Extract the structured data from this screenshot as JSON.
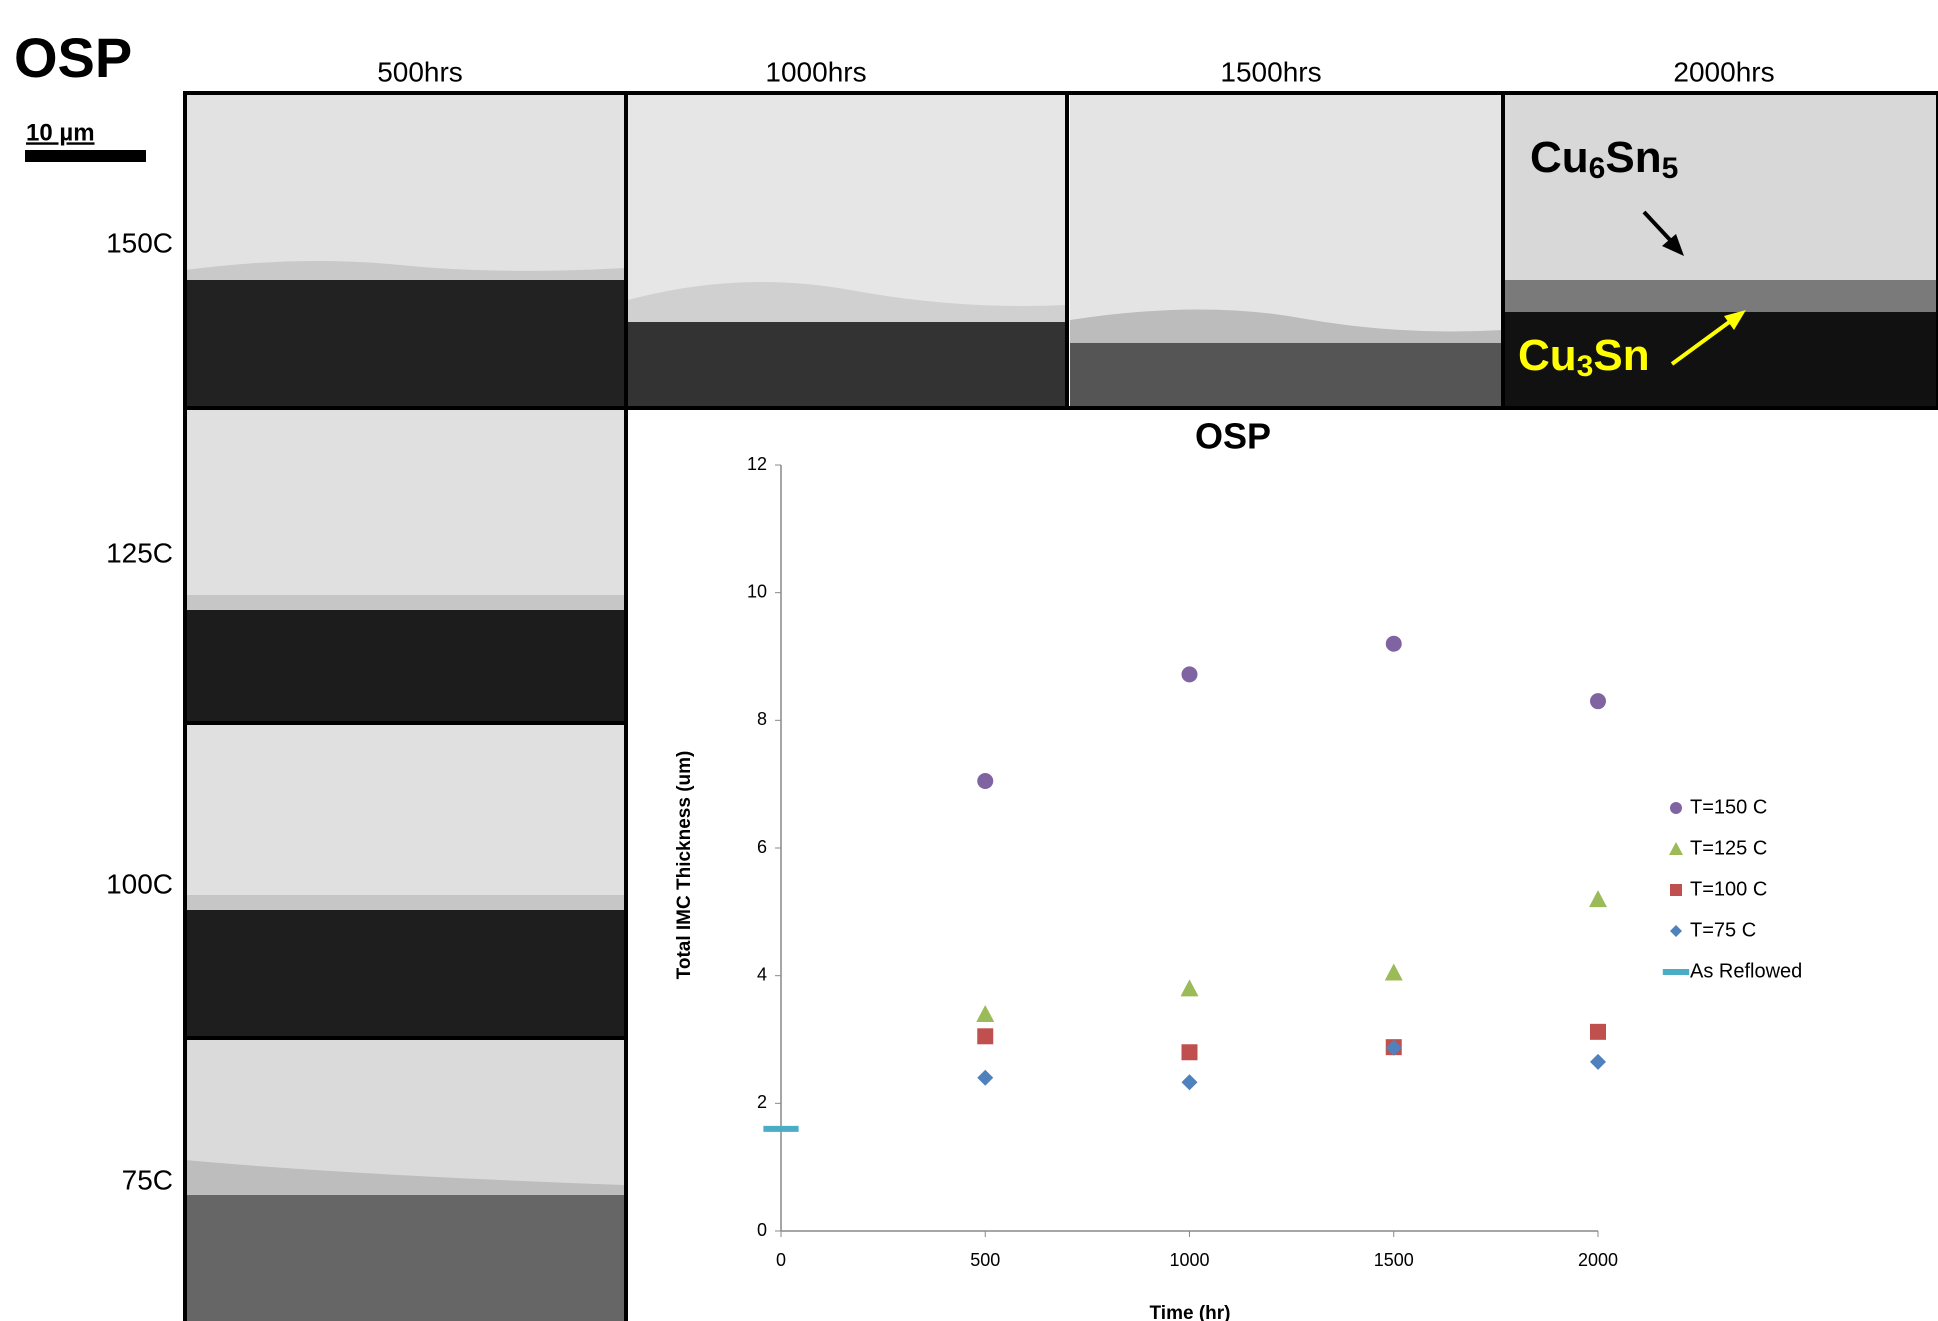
{
  "figure": {
    "title": "OSP",
    "scale_bar": "10 µm",
    "columns": [
      "500hrs",
      "1000hrs",
      "1500hrs",
      "2000hrs"
    ],
    "rows": [
      "150C",
      "125C",
      "100C",
      "75C"
    ],
    "annotations": [
      {
        "parts": [
          "Cu",
          "6",
          "Sn",
          "5"
        ]
      },
      {
        "parts": [
          "Cu",
          "3",
          "Sn"
        ]
      }
    ]
  },
  "chart_data": {
    "type": "scatter",
    "title": "OSP",
    "x_label": "Time (hr)",
    "y_label": "Total IMC Thickness (um)",
    "x": [
      500,
      1000,
      1500,
      2000
    ],
    "series": [
      {
        "name": "T=150 C",
        "color": "#8064a2",
        "marker": "circle",
        "values": [
          7.05,
          8.72,
          9.2,
          8.3
        ]
      },
      {
        "name": "T=125 C",
        "color": "#9bbb59",
        "marker": "triangle",
        "values": [
          3.4,
          3.8,
          4.05,
          5.2
        ]
      },
      {
        "name": "T=100 C",
        "color": "#c0504d",
        "marker": "square",
        "values": [
          3.05,
          2.8,
          2.88,
          3.12
        ]
      },
      {
        "name": "T=75 C",
        "color": "#4f81bd",
        "marker": "diamond",
        "values": [
          2.4,
          2.33,
          2.87,
          2.65
        ]
      },
      {
        "name": "As Reflowed",
        "color": "#4bacc6",
        "marker": "dash",
        "x": [
          0
        ],
        "values": [
          1.6
        ]
      }
    ],
    "xlim": [
      0,
      2000
    ],
    "xticks": [
      0,
      500,
      1000,
      1500,
      2000
    ],
    "ylim": [
      0,
      12
    ],
    "yticks": [
      0,
      2,
      4,
      6,
      8,
      10,
      12
    ],
    "grid": false,
    "legend": "right"
  }
}
